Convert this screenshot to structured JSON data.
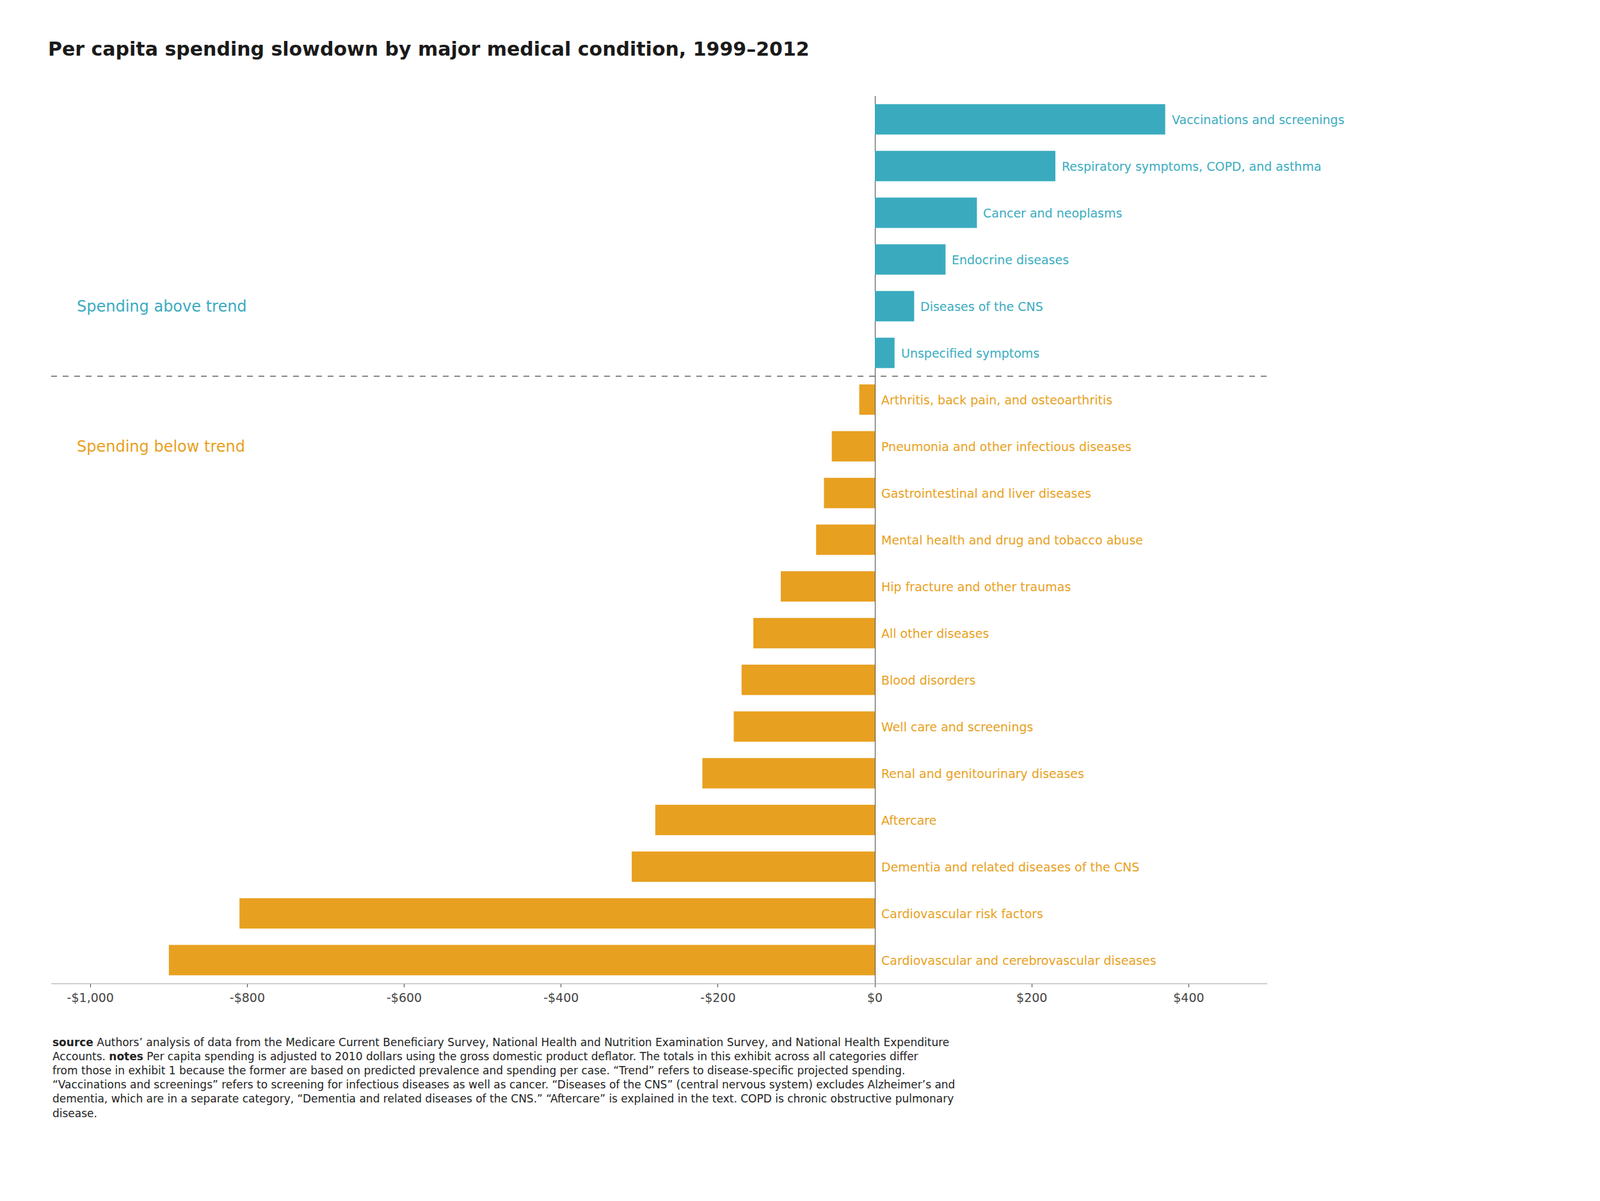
{
  "chart_data": {
    "type": "bar",
    "orientation": "horizontal",
    "title": "Per capita spending slowdown by major medical condition, 1999–2012",
    "categories": [
      "Vaccinations and screenings",
      "Respiratory symptoms, COPD, and asthma",
      "Cancer and neoplasms",
      "Endocrine diseases",
      "Diseases of the CNS",
      "Unspecified symptoms",
      "Arthritis, back pain, and osteoarthritis",
      "Pneumonia and other infectious diseases",
      "Gastrointestinal and liver diseases",
      "Mental health and drug and tobacco abuse",
      "Hip fracture and other traumas",
      "All other diseases",
      "Blood disorders",
      "Well care and screenings",
      "Renal and genitourinary diseases",
      "Aftercare",
      "Dementia and related diseases of the CNS",
      "Cardiovascular risk factors",
      "Cardiovascular and cerebrovascular diseases"
    ],
    "values": [
      370,
      230,
      130,
      90,
      50,
      25,
      -20,
      -55,
      -65,
      -75,
      -120,
      -155,
      -170,
      -180,
      -220,
      -280,
      -310,
      -810,
      -900
    ],
    "colors": [
      "#3AABBF",
      "#3AABBF",
      "#3AABBF",
      "#3AABBF",
      "#3AABBF",
      "#3AABBF",
      "#E8A020",
      "#E8A020",
      "#E8A020",
      "#E8A020",
      "#E8A020",
      "#E8A020",
      "#E8A020",
      "#E8A020",
      "#E8A020",
      "#E8A020",
      "#E8A020",
      "#E8A020",
      "#E8A020"
    ],
    "xlim": [
      -1050,
      500
    ],
    "xticks": [
      {
        "value": -1000,
        "label": "-$1,000"
      },
      {
        "value": -800,
        "label": "-$800"
      },
      {
        "value": -600,
        "label": "-$600"
      },
      {
        "value": -400,
        "label": "-$400"
      },
      {
        "value": -200,
        "label": "-$200"
      },
      {
        "value": 0,
        "label": "$0"
      },
      {
        "value": 200,
        "label": "$200"
      },
      {
        "value": 400,
        "label": "$400"
      }
    ],
    "grid": false,
    "tick_labels": "x",
    "annotations": [
      "Spending above trend",
      "Spending below trend",
      "source",
      "Authors’ analysis of data from the Medicare Current Beneficiary Survey, National Health and Nutrition Examination Survey, and National Health Expenditure Accounts.",
      "notes",
      "Per capita spending is adjusted to 2010 dollars using the gross domestic product deflator. The totals in this exhibit across all categories differ from those in exhibit 1 because the former are based on predicted prevalence and spending per case. “Trend” refers to disease-specific projected spending. “Vaccinations and screenings” refers to screening for infectious diseases as well as cancer. “Diseases of the CNS” (central nervous system) excludes Alzheimer’s and dementia, which are in a separate category, “Dementia and related diseases of the CNS.” “Aftercare” is explained in the text. COPD is chronic obstructive pulmonary disease."
    ]
  }
}
